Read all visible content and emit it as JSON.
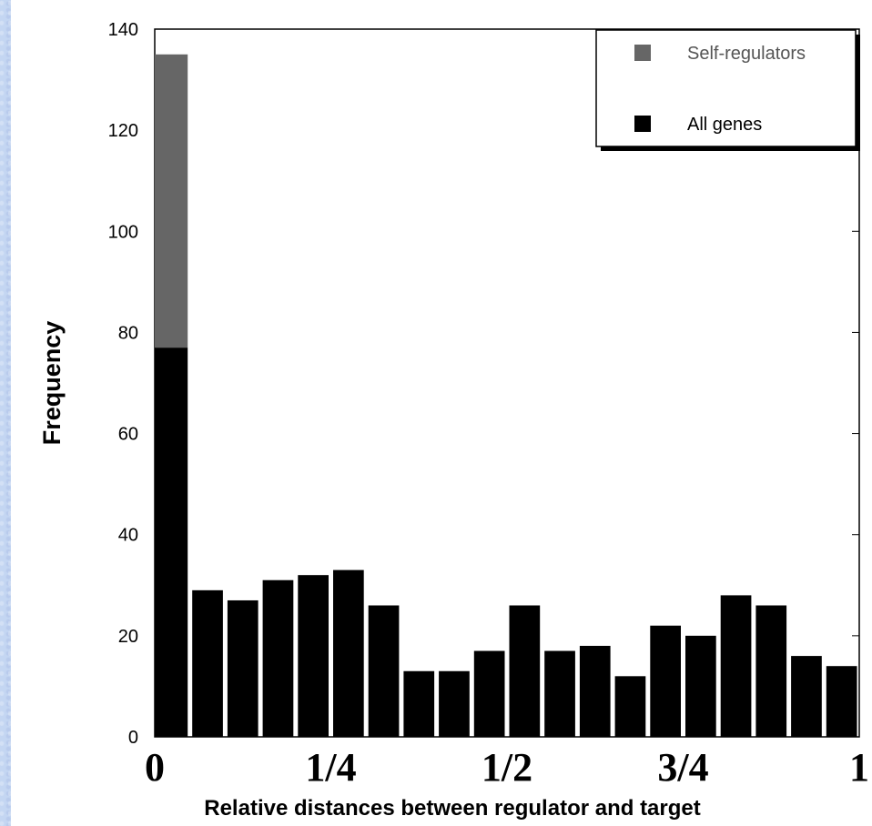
{
  "chart_data": {
    "type": "bar",
    "xlabel": "Relative distances between regulator and target",
    "ylabel": "Frequency",
    "ylim": [
      0,
      140
    ],
    "yticks": [
      0,
      20,
      40,
      60,
      80,
      100,
      120,
      140
    ],
    "xtick_labels": [
      {
        "label": "0",
        "x": 0
      },
      {
        "label": "1/4",
        "x": 0.25
      },
      {
        "label": "1/2",
        "x": 0.5
      },
      {
        "label": "3/4",
        "x": 0.75
      },
      {
        "label": "1",
        "x": 1
      }
    ],
    "legend_position": "top-right",
    "series": [
      {
        "name": "All genes",
        "color": "#000000",
        "values": [
          77,
          29,
          27,
          31,
          32,
          33,
          26,
          13,
          13,
          17,
          26,
          17,
          18,
          12,
          22,
          20,
          28,
          26,
          16,
          14
        ]
      },
      {
        "name": "Self-regulators",
        "color": "#666666",
        "stacked": true,
        "values": [
          58,
          0,
          0,
          0,
          0,
          0,
          0,
          0,
          0,
          0,
          0,
          0,
          0,
          0,
          0,
          0,
          0,
          0,
          0,
          0
        ]
      }
    ],
    "bin_edges_start": [
      0,
      0.05,
      0.1,
      0.15,
      0.2,
      0.25,
      0.3,
      0.35,
      0.4,
      0.45,
      0.5,
      0.55,
      0.6,
      0.65,
      0.7,
      0.75,
      0.8,
      0.85,
      0.9,
      0.95
    ]
  }
}
